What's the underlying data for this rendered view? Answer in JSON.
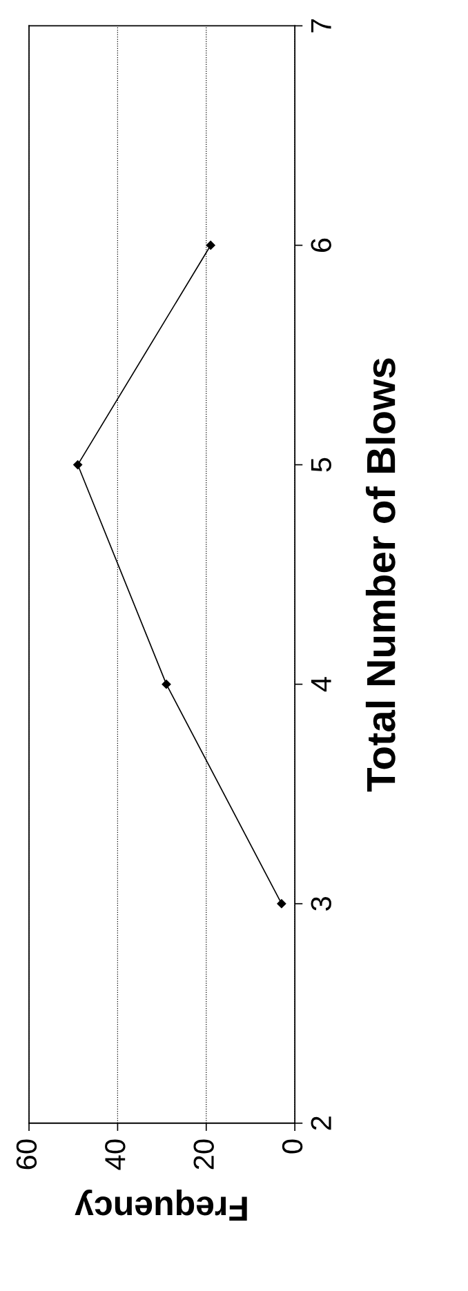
{
  "chart_data": {
    "type": "line",
    "xlabel": "Frequency",
    "ylabel": "Total Number of Blows",
    "series": [
      {
        "color": "#000000",
        "x": [
          3,
          29,
          49,
          19
        ],
        "values": [
          3,
          4,
          5,
          6
        ]
      }
    ],
    "xlim": [
      60,
      0
    ],
    "xticks": [
      60,
      40,
      20,
      0
    ],
    "ylim": [
      2,
      7
    ],
    "yticks": [
      2,
      3,
      4,
      5,
      6,
      7
    ],
    "grid": "x",
    "marker": "diamond",
    "line_style": "solid",
    "legend": false
  }
}
